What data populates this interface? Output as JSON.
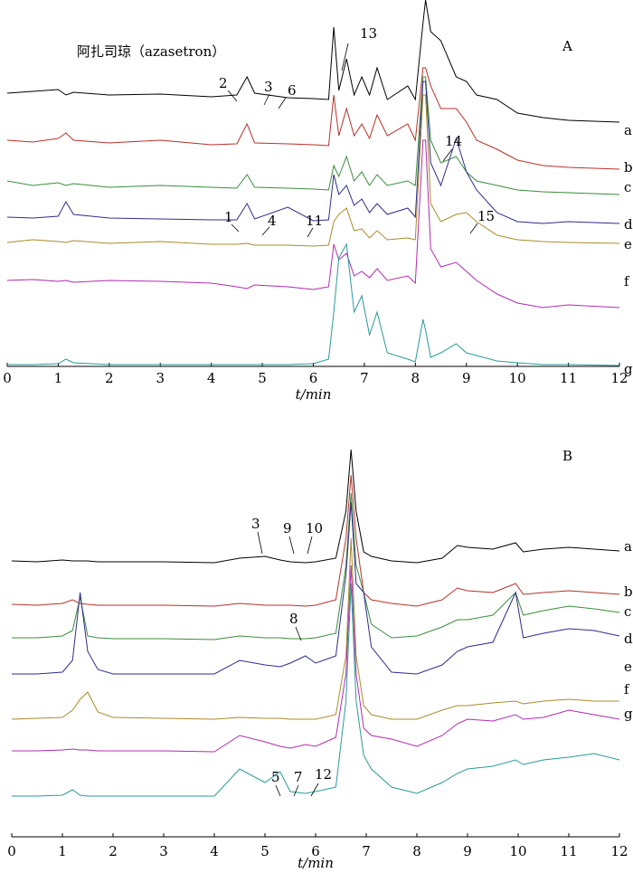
{
  "chart_data": [
    {
      "type": "line",
      "panel": "A",
      "xlabel": "t/min",
      "xlim": [
        0,
        12
      ],
      "xticks": [
        0,
        1,
        2,
        3,
        4,
        5,
        6,
        7,
        8,
        9,
        10,
        11,
        12
      ],
      "ylim": [
        0,
        405
      ],
      "x": [
        0,
        0.5,
        1,
        1.15,
        1.3,
        2,
        3,
        4,
        4.5,
        4.7,
        4.85,
        5.5,
        6,
        6.3,
        6.4,
        6.5,
        6.65,
        6.8,
        6.95,
        7.1,
        7.25,
        7.45,
        7.85,
        8.0,
        8.15,
        8.2,
        8.3,
        8.5,
        8.8,
        9,
        9.2,
        9.6,
        10,
        10.5,
        11,
        12
      ],
      "series": [
        {
          "name": "a",
          "color": "#000000",
          "values": [
            302,
            304,
            306,
            300,
            303,
            300,
            301,
            298,
            300,
            320,
            302,
            297,
            296,
            295,
            375,
            305,
            340,
            300,
            320,
            300,
            330,
            295,
            310,
            295,
            380,
            405,
            370,
            360,
            320,
            315,
            300,
            295,
            280,
            275,
            272,
            270
          ]
        },
        {
          "name": "b",
          "color": "#b5322a",
          "values": [
            250,
            248,
            252,
            258,
            250,
            247,
            250,
            245,
            246,
            268,
            247,
            246,
            245,
            244,
            300,
            255,
            285,
            255,
            268,
            252,
            278,
            255,
            268,
            250,
            330,
            330,
            310,
            285,
            285,
            270,
            250,
            240,
            228,
            222,
            220,
            218
          ]
        },
        {
          "name": "c",
          "color": "#3c8c3c",
          "values": [
            205,
            200,
            203,
            200,
            202,
            198,
            200,
            198,
            197,
            212,
            198,
            197,
            196,
            195,
            222,
            210,
            232,
            205,
            215,
            200,
            212,
            200,
            205,
            200,
            320,
            320,
            250,
            225,
            232,
            215,
            205,
            200,
            195,
            193,
            192,
            190
          ]
        },
        {
          "name": "d",
          "color": "#2e2e8c",
          "values": [
            165,
            164,
            166,
            182,
            168,
            164,
            163,
            162,
            162,
            180,
            163,
            176,
            161,
            162,
            212,
            190,
            200,
            178,
            185,
            170,
            180,
            168,
            175,
            165,
            315,
            315,
            225,
            200,
            252,
            215,
            195,
            170,
            160,
            158,
            160,
            158
          ]
        },
        {
          "name": "e",
          "color": "#a88c2c",
          "values": [
            137,
            140,
            138,
            137,
            139,
            136,
            138,
            135,
            135,
            136,
            134,
            134,
            133,
            134,
            160,
            168,
            175,
            150,
            152,
            142,
            150,
            140,
            142,
            140,
            300,
            300,
            180,
            160,
            168,
            170,
            160,
            145,
            140,
            138,
            137,
            136
          ]
        },
        {
          "name": "f",
          "color": "#b02cb0",
          "values": [
            95,
            96,
            94,
            95,
            93,
            95,
            94,
            92,
            88,
            86,
            90,
            88,
            85,
            88,
            135,
            118,
            125,
            100,
            105,
            98,
            108,
            95,
            100,
            92,
            250,
            250,
            130,
            110,
            115,
            105,
            95,
            80,
            70,
            65,
            68,
            65
          ]
        },
        {
          "name": "g",
          "color": "#2a9a9a",
          "values": [
            2,
            2,
            3,
            8,
            4,
            2,
            2,
            2,
            2,
            2,
            2,
            2,
            3,
            8,
            60,
            120,
            135,
            60,
            78,
            35,
            60,
            15,
            8,
            5,
            52,
            40,
            10,
            15,
            25,
            15,
            12,
            6,
            4,
            2,
            2,
            1
          ]
        }
      ],
      "annotations": [
        "阿扎司琼（azasetron）",
        "13",
        "A",
        "2",
        "3",
        "6",
        "14",
        "15",
        "1",
        "4",
        "11"
      ]
    },
    {
      "type": "line",
      "panel": "B",
      "xlabel": "t/min",
      "xlim": [
        0,
        12
      ],
      "xticks": [
        0,
        1,
        2,
        3,
        4,
        5,
        6,
        7,
        8,
        9,
        10,
        11,
        12
      ],
      "ylim": [
        0,
        450
      ],
      "x": [
        0,
        0.5,
        1,
        1.2,
        1.35,
        1.5,
        1.7,
        2,
        3,
        4,
        4.5,
        5,
        5.3,
        5.5,
        5.8,
        6,
        6.4,
        6.6,
        6.7,
        6.8,
        6.95,
        7.1,
        7.5,
        8,
        8.5,
        8.8,
        9,
        9.5,
        9.95,
        10.1,
        10.5,
        11,
        11.5,
        12
      ],
      "series": [
        {
          "name": "a",
          "color": "#000000",
          "values": [
            305,
            304,
            306,
            305,
            305,
            305,
            304,
            304,
            304,
            303,
            308,
            310,
            306,
            304,
            303,
            304,
            308,
            360,
            428,
            360,
            315,
            310,
            305,
            303,
            308,
            322,
            320,
            318,
            325,
            315,
            318,
            320,
            318,
            316
          ]
        },
        {
          "name": "b",
          "color": "#b5322a",
          "values": [
            257,
            256,
            258,
            262,
            258,
            257,
            256,
            256,
            256,
            255,
            258,
            256,
            256,
            256,
            255,
            256,
            262,
            330,
            400,
            330,
            270,
            262,
            258,
            255,
            262,
            275,
            272,
            270,
            280,
            268,
            270,
            272,
            270,
            268
          ]
        },
        {
          "name": "c",
          "color": "#3c8c3c",
          "values": [
            220,
            220,
            222,
            228,
            265,
            222,
            220,
            219,
            219,
            218,
            222,
            220,
            220,
            219,
            219,
            220,
            225,
            300,
            380,
            300,
            270,
            235,
            220,
            222,
            232,
            240,
            240,
            245,
            270,
            245,
            250,
            255,
            252,
            248
          ]
        },
        {
          "name": "d",
          "color": "#2e2e8c",
          "values": [
            180,
            180,
            182,
            195,
            270,
            205,
            185,
            180,
            180,
            180,
            195,
            190,
            188,
            192,
            200,
            192,
            200,
            290,
            370,
            280,
            270,
            210,
            182,
            180,
            190,
            205,
            210,
            215,
            270,
            220,
            225,
            230,
            228,
            222
          ]
        },
        {
          "name": "e",
          "color": "#a88c2c",
          "values": [
            130,
            131,
            132,
            140,
            152,
            160,
            138,
            132,
            131,
            130,
            132,
            131,
            131,
            130,
            130,
            130,
            135,
            200,
            330,
            200,
            145,
            135,
            130,
            130,
            140,
            145,
            145,
            148,
            150,
            147,
            150,
            152,
            150,
            150
          ]
        },
        {
          "name": "f",
          "color": "#b02cb0",
          "values": [
            95,
            95,
            96,
            97,
            96,
            96,
            95,
            95,
            95,
            94,
            112,
            105,
            100,
            98,
            102,
            100,
            110,
            180,
            300,
            180,
            120,
            112,
            108,
            100,
            112,
            125,
            130,
            128,
            135,
            130,
            132,
            140,
            135,
            130
          ]
        },
        {
          "name": "g",
          "color": "#2a9a9a",
          "values": [
            45,
            45,
            46,
            52,
            46,
            45,
            45,
            45,
            45,
            45,
            75,
            60,
            72,
            50,
            48,
            50,
            55,
            150,
            280,
            150,
            90,
            75,
            55,
            48,
            60,
            70,
            75,
            78,
            85,
            80,
            85,
            88,
            92,
            85
          ]
        }
      ],
      "annotations": [
        "B",
        "3",
        "9",
        "10",
        "8",
        "5",
        "7",
        "12"
      ]
    }
  ]
}
